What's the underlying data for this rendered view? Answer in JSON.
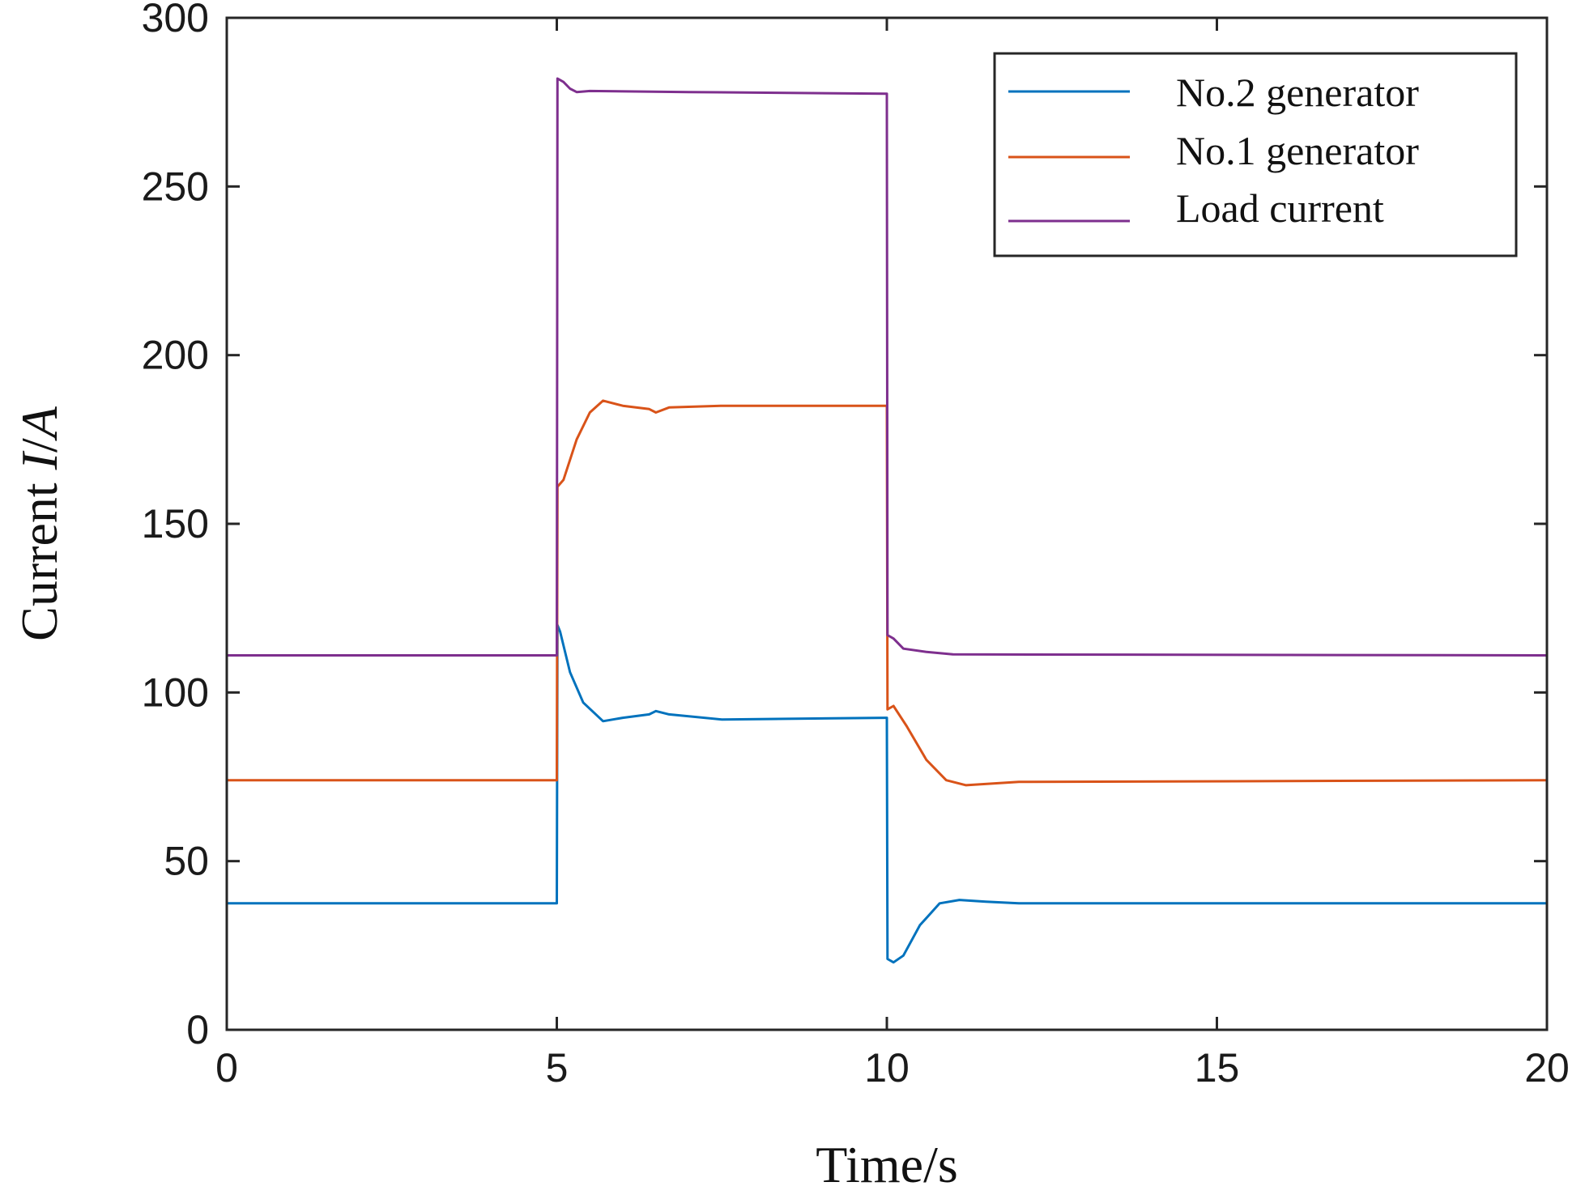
{
  "chart_data": {
    "type": "line",
    "xlabel": "Time/s",
    "ylabel": {
      "prefix": "Current ",
      "italic": "I",
      "suffix": "/",
      "italic2": "A"
    },
    "xlim": [
      0,
      20
    ],
    "ylim": [
      0,
      300
    ],
    "xticks": [
      0,
      5,
      10,
      15,
      20
    ],
    "yticks": [
      0,
      50,
      100,
      150,
      200,
      250,
      300
    ],
    "grid": false,
    "legend_position": "top-right",
    "series": [
      {
        "name": "No.2 generator",
        "color": "#0072BD",
        "points": [
          [
            0,
            37.5
          ],
          [
            4.98,
            37.5
          ],
          [
            5.0,
            37.5
          ],
          [
            5.01,
            120
          ],
          [
            5.05,
            118
          ],
          [
            5.2,
            106
          ],
          [
            5.4,
            97
          ],
          [
            5.7,
            91.5
          ],
          [
            6.0,
            92.5
          ],
          [
            6.4,
            93.5
          ],
          [
            6.5,
            94.5
          ],
          [
            6.7,
            93.5
          ],
          [
            7.5,
            92
          ],
          [
            9.98,
            92.5
          ],
          [
            10.0,
            92.5
          ],
          [
            10.01,
            21
          ],
          [
            10.1,
            20
          ],
          [
            10.25,
            22
          ],
          [
            10.5,
            31
          ],
          [
            10.8,
            37.5
          ],
          [
            11.1,
            38.5
          ],
          [
            11.5,
            38
          ],
          [
            12,
            37.5
          ],
          [
            20,
            37.5
          ]
        ]
      },
      {
        "name": "No.1 generator",
        "color": "#D95319",
        "points": [
          [
            0,
            74
          ],
          [
            4.98,
            74
          ],
          [
            5.0,
            74
          ],
          [
            5.01,
            161
          ],
          [
            5.1,
            163
          ],
          [
            5.3,
            175
          ],
          [
            5.5,
            183
          ],
          [
            5.7,
            186.5
          ],
          [
            6.0,
            185
          ],
          [
            6.4,
            184
          ],
          [
            6.5,
            183
          ],
          [
            6.7,
            184.5
          ],
          [
            7.5,
            185
          ],
          [
            9.98,
            185
          ],
          [
            10.0,
            185
          ],
          [
            10.01,
            95
          ],
          [
            10.1,
            96
          ],
          [
            10.3,
            90
          ],
          [
            10.6,
            80
          ],
          [
            10.9,
            74
          ],
          [
            11.2,
            72.5
          ],
          [
            12,
            73.5
          ],
          [
            20,
            74
          ]
        ]
      },
      {
        "name": "Load current",
        "color": "#7E2F8E",
        "points": [
          [
            0,
            111
          ],
          [
            4.98,
            111
          ],
          [
            5.0,
            111
          ],
          [
            5.01,
            282
          ],
          [
            5.1,
            281
          ],
          [
            5.2,
            279
          ],
          [
            5.3,
            278
          ],
          [
            5.5,
            278.3
          ],
          [
            7,
            278
          ],
          [
            9.98,
            277.5
          ],
          [
            10.0,
            277.5
          ],
          [
            10.01,
            117
          ],
          [
            10.1,
            116
          ],
          [
            10.25,
            113
          ],
          [
            10.6,
            112
          ],
          [
            11,
            111.3
          ],
          [
            20,
            111
          ]
        ]
      }
    ]
  }
}
